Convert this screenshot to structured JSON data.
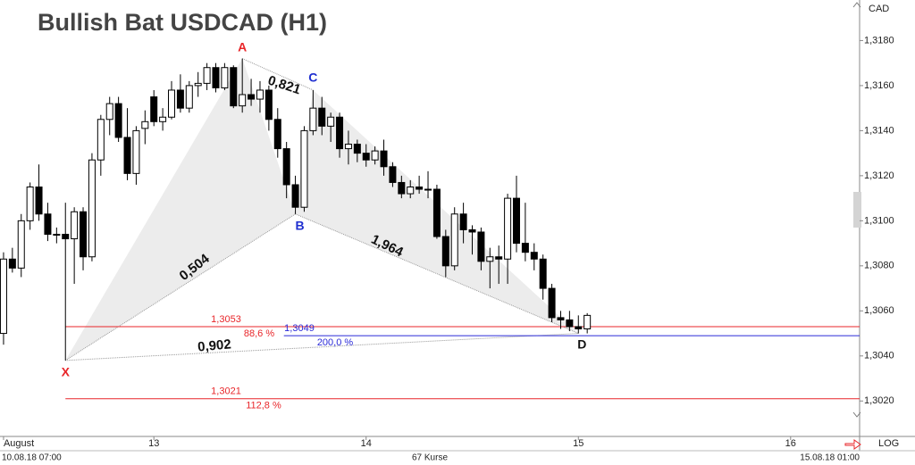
{
  "chart_data": {
    "type": "candlestick",
    "title": "Bullish Bat USDCAD (H1)",
    "currency": "CAD",
    "scale_label": "LOG",
    "start_label": "10.08.18 07:00",
    "count_label": "67 Kurse",
    "end_label": "15.08.18 01:00",
    "ylim": [
      1.3011,
      1.3198
    ],
    "xlim": [
      -0.4,
      96.8
    ],
    "yticks": [
      {
        "value": 1.302,
        "label": "1,3020"
      },
      {
        "value": 1.304,
        "label": "1,3040"
      },
      {
        "value": 1.306,
        "label": "1,3060"
      },
      {
        "value": 1.308,
        "label": "1,3080"
      },
      {
        "value": 1.31,
        "label": "1,3100"
      },
      {
        "value": 1.312,
        "label": "1,3120"
      },
      {
        "value": 1.314,
        "label": "1,3140"
      },
      {
        "value": 1.316,
        "label": "1,3160"
      },
      {
        "value": 1.318,
        "label": "1,3180"
      }
    ],
    "xticks": [
      {
        "value": 0,
        "label": "August"
      },
      {
        "value": 17,
        "label": "13"
      },
      {
        "value": 41,
        "label": "14"
      },
      {
        "value": 65,
        "label": "15"
      },
      {
        "value": 89,
        "label": "16"
      }
    ],
    "up_color": "#ffffff",
    "down_color": "#000000",
    "open": [
      1.305,
      1.3083,
      1.3079,
      1.31,
      1.3115,
      1.3103,
      1.3094,
      1.3094,
      1.3092,
      1.3104,
      1.3084,
      1.3127,
      1.3145,
      1.3152,
      1.3137,
      1.3121,
      1.3141,
      1.3155,
      1.3144,
      1.3146,
      1.3158,
      1.315,
      1.316,
      1.3161,
      1.3168,
      1.3159,
      1.3168,
      1.3151,
      1.3156,
      1.3154,
      1.3158,
      1.3145,
      1.3132,
      1.3116,
      1.3106,
      1.314,
      1.315,
      1.3142,
      1.3146,
      1.3132,
      1.3134,
      1.313,
      1.3127,
      1.3131,
      1.3124,
      1.3117,
      1.3112,
      1.3115,
      1.3114,
      1.3114,
      1.3093,
      1.308,
      1.3103,
      1.3096,
      1.3095,
      1.3082,
      1.3084,
      1.3083,
      1.311,
      1.309,
      1.3086,
      1.3083,
      1.307,
      1.3057,
      1.3056,
      1.3053,
      1.3052
    ],
    "high": [
      1.3086,
      1.3088,
      1.3103,
      1.3117,
      1.3125,
      1.3108,
      1.3097,
      1.3108,
      1.3106,
      1.3106,
      1.313,
      1.3147,
      1.3155,
      1.3155,
      1.315,
      1.3142,
      1.3149,
      1.3158,
      1.315,
      1.3162,
      1.3165,
      1.3162,
      1.3166,
      1.317,
      1.317,
      1.317,
      1.3169,
      1.3172,
      1.3163,
      1.3162,
      1.316,
      1.315,
      1.3135,
      1.312,
      1.3142,
      1.3158,
      1.3155,
      1.3148,
      1.3148,
      1.314,
      1.3136,
      1.3134,
      1.3133,
      1.3136,
      1.3126,
      1.312,
      1.3118,
      1.312,
      1.3122,
      1.3116,
      1.3096,
      1.3106,
      1.3108,
      1.3098,
      1.3097,
      1.3088,
      1.3089,
      1.3112,
      1.312,
      1.3108,
      1.309,
      1.3085,
      1.3072,
      1.306,
      1.306,
      1.3058,
      1.3059
    ],
    "low": [
      1.3045,
      1.3077,
      1.3075,
      1.3096,
      1.31,
      1.3091,
      1.309,
      1.3038,
      1.3072,
      1.3078,
      1.3082,
      1.312,
      1.3138,
      1.3135,
      1.3118,
      1.3116,
      1.3134,
      1.3142,
      1.314,
      1.3145,
      1.3148,
      1.3148,
      1.3155,
      1.3158,
      1.3157,
      1.3158,
      1.315,
      1.3148,
      1.3151,
      1.3148,
      1.314,
      1.3128,
      1.311,
      1.3103,
      1.3104,
      1.3138,
      1.3138,
      1.3135,
      1.3128,
      1.3125,
      1.3126,
      1.3124,
      1.3125,
      1.312,
      1.3115,
      1.311,
      1.311,
      1.3112,
      1.311,
      1.3092,
      1.3075,
      1.3078,
      1.309,
      1.3085,
      1.3078,
      1.307,
      1.3072,
      1.3072,
      1.3086,
      1.3082,
      1.3078,
      1.3065,
      1.3055,
      1.3052,
      1.3051,
      1.305,
      1.305
    ],
    "close": [
      1.3083,
      1.3079,
      1.31,
      1.3115,
      1.3103,
      1.3094,
      1.3094,
      1.3092,
      1.3104,
      1.3084,
      1.3127,
      1.3145,
      1.3152,
      1.3137,
      1.3121,
      1.314,
      1.3144,
      1.3144,
      1.3146,
      1.3158,
      1.315,
      1.316,
      1.3161,
      1.3168,
      1.3159,
      1.3168,
      1.3151,
      1.3156,
      1.3154,
      1.3158,
      1.3145,
      1.3132,
      1.3116,
      1.3106,
      1.314,
      1.315,
      1.3142,
      1.3146,
      1.3132,
      1.3134,
      1.313,
      1.3127,
      1.3131,
      1.3124,
      1.3117,
      1.3112,
      1.3115,
      1.3114,
      1.3114,
      1.3093,
      1.308,
      1.3103,
      1.3096,
      1.3095,
      1.3082,
      1.3084,
      1.3083,
      1.311,
      1.309,
      1.3086,
      1.3083,
      1.307,
      1.3057,
      1.3056,
      1.3053,
      1.3052,
      1.3058
    ],
    "pattern": {
      "points": [
        {
          "label": "X",
          "index": 7,
          "value": 1.3038,
          "color": "#e8262a"
        },
        {
          "label": "A",
          "index": 27,
          "value": 1.3172,
          "color": "#e8262a"
        },
        {
          "label": "B",
          "index": 33,
          "value": 1.3103,
          "color": "#1f2fd0"
        },
        {
          "label": "C",
          "index": 35,
          "value": 1.3158,
          "color": "#1f2fd0"
        },
        {
          "label": "D",
          "index": 65,
          "value": 1.305,
          "color": "#111111"
        }
      ],
      "ratios": [
        "0,504",
        "0,821",
        "1,964",
        "0,902"
      ]
    },
    "levels": [
      {
        "value": 1.3053,
        "label": "1,3053",
        "pct_label": "88,6 %",
        "color": "#e8262a"
      },
      {
        "value": 1.3049,
        "label": "1,3049",
        "pct_label": "200,0 %",
        "color": "#2a2ad8"
      },
      {
        "value": 1.3021,
        "label": "1,3021",
        "pct_label": "112,8 %",
        "color": "#e8262a"
      }
    ]
  }
}
